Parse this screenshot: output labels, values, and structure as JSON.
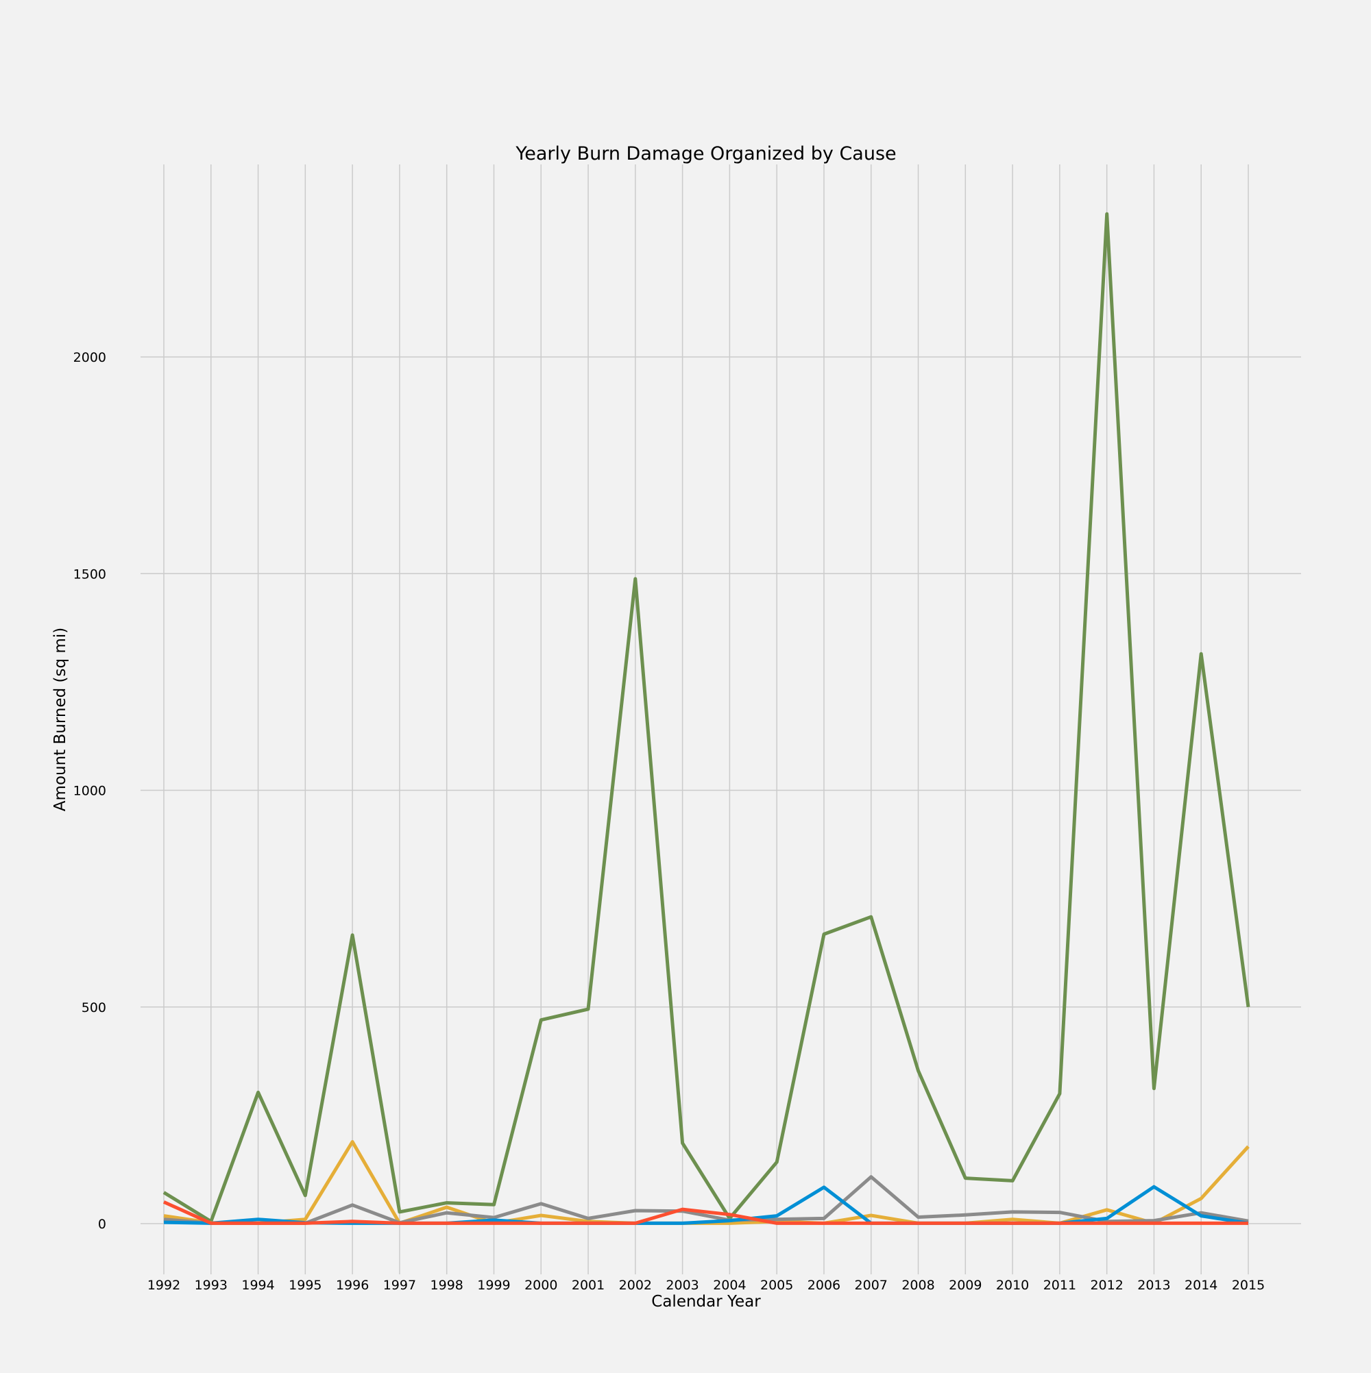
{
  "chart_data": {
    "type": "line",
    "title": "Yearly Burn Damage Organized by Cause",
    "xlabel": "Calendar Year",
    "ylabel": "Amount Burned (sq mi)",
    "x": [
      1992,
      1993,
      1994,
      1995,
      1996,
      1997,
      1998,
      1999,
      2000,
      2001,
      2002,
      2003,
      2004,
      2005,
      2006,
      2007,
      2008,
      2009,
      2010,
      2011,
      2012,
      2013,
      2014,
      2015
    ],
    "ylim": [
      -110,
      2400
    ],
    "yticks": [
      0,
      500,
      1000,
      1500,
      2000
    ],
    "grid": true,
    "legend": "none",
    "series": [
      {
        "color": "#6d904f",
        "values": [
          72,
          5,
          303,
          65,
          666,
          27,
          48,
          44,
          470,
          495,
          1488,
          186,
          12,
          142,
          668,
          708,
          353,
          105,
          99,
          300,
          2330,
          312,
          1315,
          500
        ]
      },
      {
        "color": "#e5ae38",
        "values": [
          18,
          2,
          1,
          10,
          189,
          1,
          38,
          1,
          19,
          5,
          1,
          1,
          1,
          5,
          1,
          19,
          1,
          1,
          10,
          1,
          32,
          1,
          58,
          178
        ]
      },
      {
        "color": "#8b8b8b",
        "values": [
          10,
          1,
          1,
          1,
          43,
          2,
          25,
          14,
          46,
          12,
          30,
          29,
          8,
          10,
          12,
          108,
          15,
          20,
          27,
          26,
          5,
          7,
          25,
          6
        ]
      },
      {
        "color": "#008fd5",
        "values": [
          3,
          1,
          10,
          2,
          1,
          1,
          1,
          8,
          1,
          1,
          1,
          1,
          7,
          18,
          84,
          1,
          1,
          1,
          1,
          1,
          12,
          85,
          18,
          1
        ]
      },
      {
        "color": "#fc4f30",
        "values": [
          50,
          1,
          1,
          1,
          5,
          1,
          1,
          1,
          1,
          1,
          1,
          33,
          21,
          1,
          1,
          1,
          1,
          1,
          1,
          1,
          1,
          1,
          1,
          1
        ]
      }
    ]
  }
}
